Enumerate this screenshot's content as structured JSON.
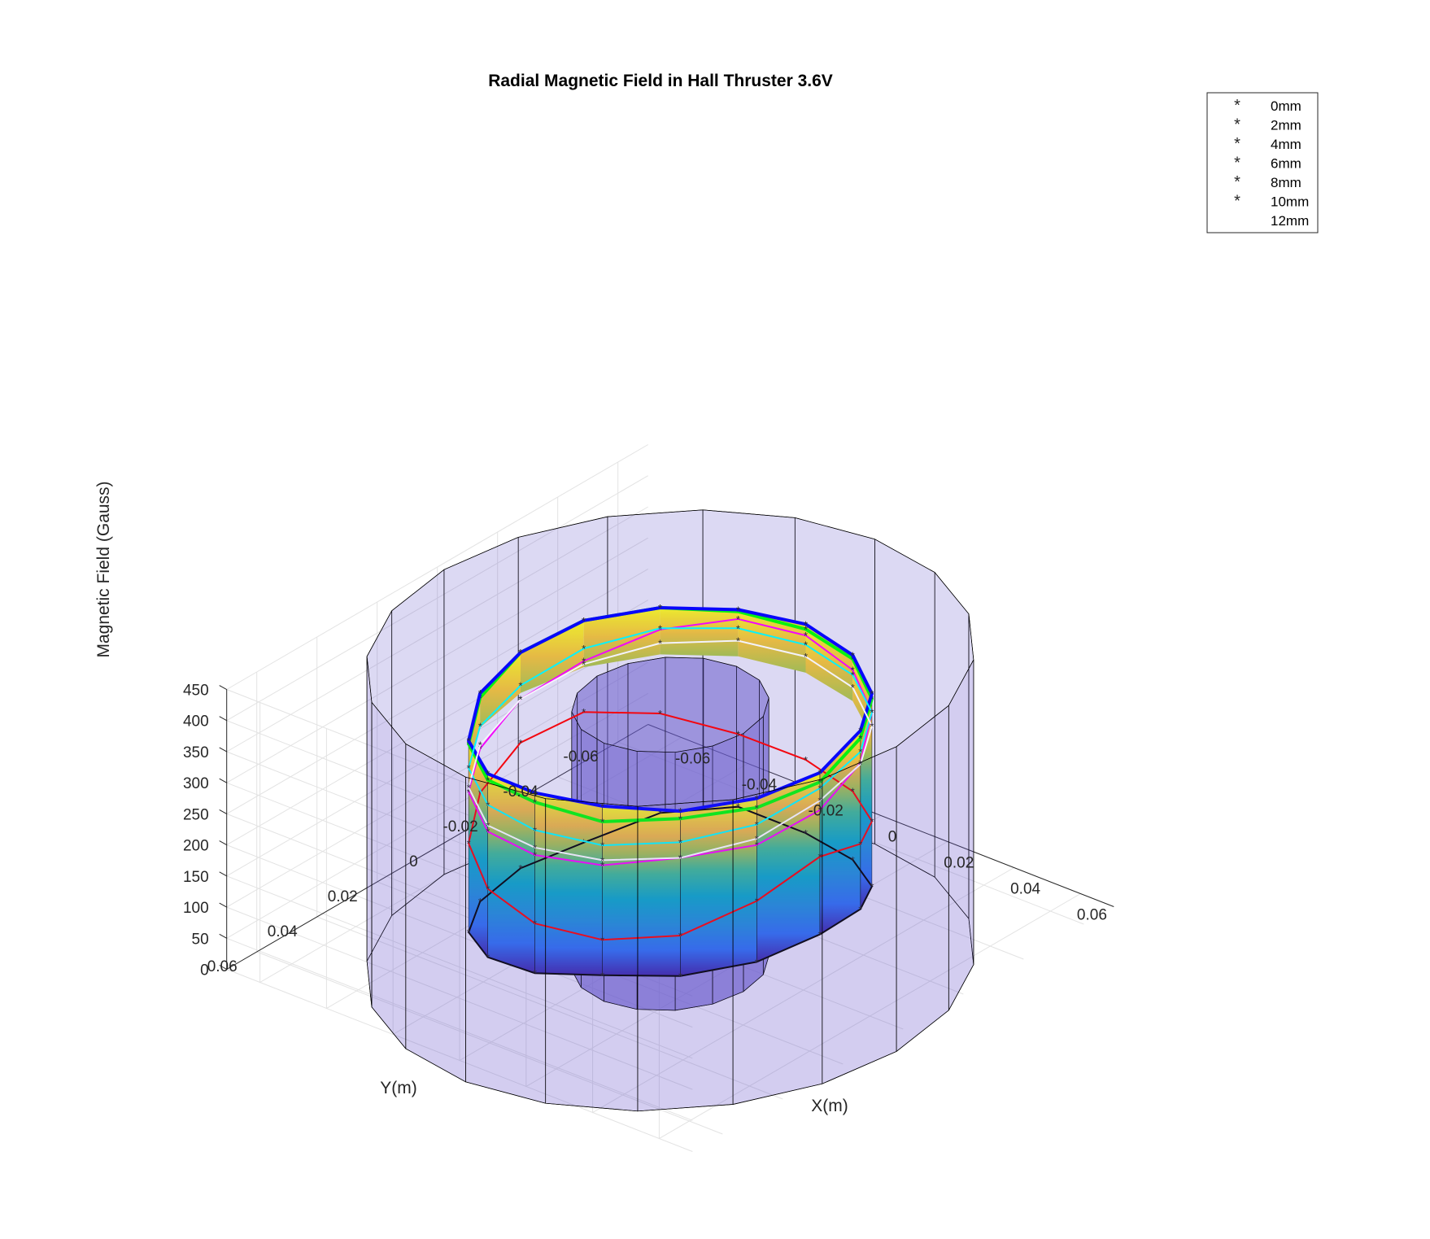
{
  "chart_data": {
    "type": "surface3d",
    "title": "Radial Magnetic Field in Hall Thruster 3.6V",
    "xlabel": "X(m)",
    "ylabel": "Y(m)",
    "zlabel": "Magnetic Field (Gauss)",
    "xlim": [
      -0.07,
      0.07
    ],
    "ylim": [
      -0.07,
      0.07
    ],
    "zlim": [
      0,
      450
    ],
    "x_ticks": [
      "-0.06",
      "-0.04",
      "-0.02",
      "0",
      "0.02",
      "0.04",
      "0.06"
    ],
    "y_ticks": [
      "0.06",
      "0.04",
      "0.02",
      "0",
      "-0.02",
      "-0.04",
      "-0.06"
    ],
    "z_ticks": [
      "0",
      "50",
      "100",
      "150",
      "200",
      "250",
      "300",
      "350",
      "400",
      "450"
    ],
    "grid": true,
    "legend_position": "top-right",
    "geometry": {
      "outer_wall_radius_m": 0.068,
      "inner_pole_radius_m": 0.022,
      "channel_radius_m": 0.045,
      "angular_points": 16
    },
    "colors": {
      "surface_colormap": "parula",
      "cylinder_fill": "#6a5acd"
    },
    "series": [
      {
        "name": "0mm",
        "color": "#000000",
        "values": [
          100,
          97,
          95,
          93,
          70,
          50,
          32,
          20,
          18,
          18,
          45,
          58,
          42,
          45,
          60,
          85
        ]
      },
      {
        "name": "2mm",
        "color": "#ff0000",
        "values": [
          225,
          195,
          160,
          150,
          150,
          160,
          175,
          195,
          220,
          228,
          205,
          175,
          160,
          155,
          165,
          190
        ]
      },
      {
        "name": "4mm",
        "color": "#ff00ff",
        "values": [
          300,
          285,
          285,
          270,
          260,
          252,
          258,
          266,
          290,
          310,
          340,
          360,
          360,
          350,
          340,
          320
        ]
      },
      {
        "name": "6mm",
        "color": "#00ff00",
        "values": [
          345,
          345,
          348,
          340,
          345,
          335,
          335,
          348,
          365,
          375,
          375,
          372,
          370,
          368,
          362,
          360
        ]
      },
      {
        "name": "8mm",
        "color": "#0000ff",
        "values": [
          360,
          360,
          360,
          365,
          360,
          345,
          340,
          355,
          365,
          375,
          375,
          375,
          378,
          374,
          370,
          372
        ]
      },
      {
        "name": "10mm",
        "color": "#00ffff",
        "values": [
          335,
          318,
          310,
          302,
          300,
          295,
          296,
          302,
          312,
          330,
          342,
          345,
          345,
          342,
          340,
          338
        ]
      },
      {
        "name": "12mm",
        "color": "#ffffff",
        "values": [
          315,
          295,
          285,
          278,
          272,
          262,
          265,
          272,
          290,
          305,
          318,
          325,
          326,
          322,
          318,
          318
        ]
      }
    ]
  }
}
